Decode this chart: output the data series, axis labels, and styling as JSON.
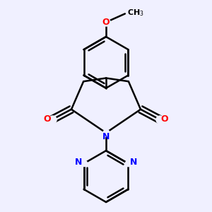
{
  "bg_color": "#f0f0ff",
  "bond_color": "#000000",
  "n_color": "#0000ff",
  "o_color": "#ff0000",
  "bond_width": 1.8,
  "dbo": 0.012,
  "font_size_atom": 9,
  "font_size_ch3": 8,
  "xlim": [
    0.15,
    0.85
  ],
  "ylim": [
    0.03,
    0.97
  ]
}
